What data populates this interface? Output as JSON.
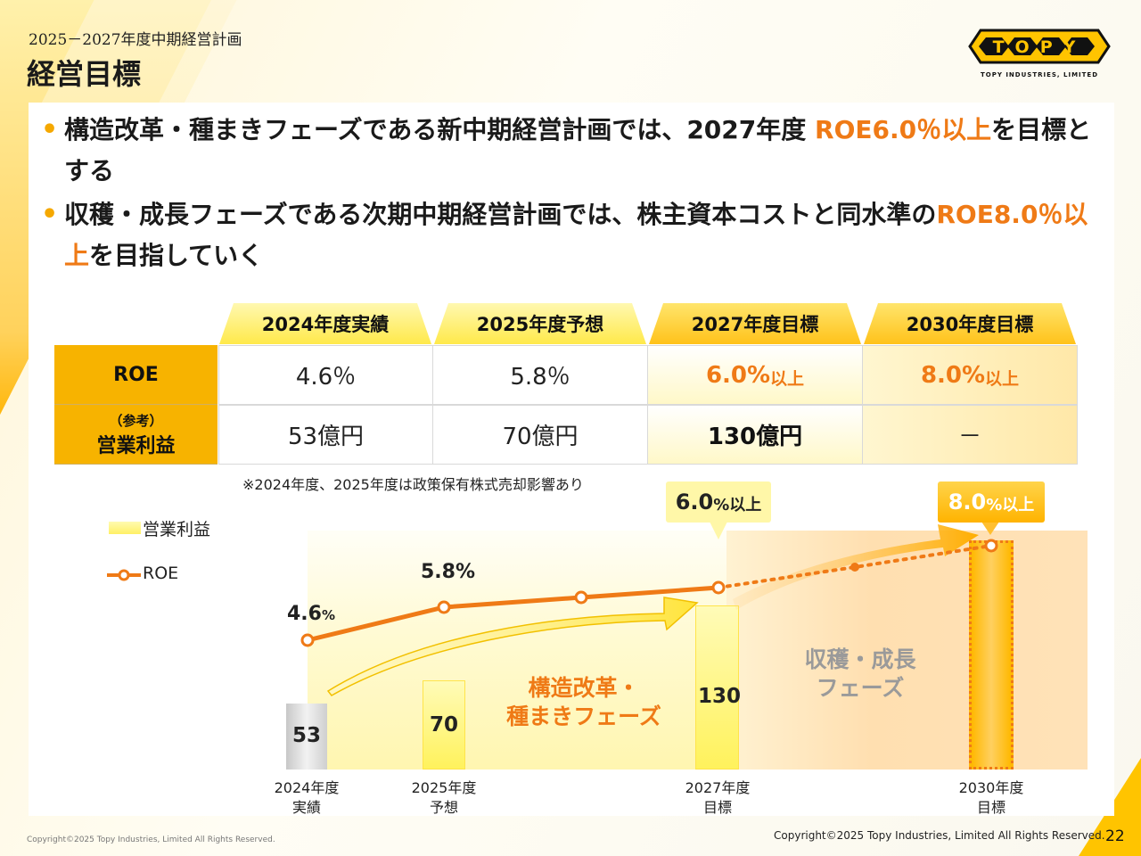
{
  "header": {
    "subtitle": "2025－2027年度中期経営計画",
    "title": "経営目標",
    "logo_text": "TOPY",
    "logo_subtext": "TOPY INDUSTRIES, LIMITED"
  },
  "bullets": [
    {
      "text_a": "構造改革・種まきフェーズである新中期経営計画では、2027年度 ",
      "highlight": "ROE6.0％以上",
      "text_b": "を目標とする"
    },
    {
      "text_a": "収穫・成長フェーズである次期中期経営計画では、株主資本コストと同水準の",
      "highlight": "ROE8.0％以上",
      "text_b": "を目指していく"
    }
  ],
  "table": {
    "columns": [
      "2024年度実績",
      "2025年度予想",
      "2027年度目標",
      "2030年度目標"
    ],
    "rows": [
      {
        "label": "ROE",
        "label_sub": "",
        "cells": [
          "4.6％",
          "5.8％",
          "6.0%",
          "8.0%"
        ],
        "cell_suffix": [
          "",
          "",
          "以上",
          "以上"
        ]
      },
      {
        "label": "営業利益",
        "label_sub": "（参考）",
        "cells": [
          "53億円",
          "70億円",
          "130億円",
          "－"
        ],
        "cell_suffix": [
          "",
          "",
          "",
          ""
        ]
      }
    ],
    "note": "※2024年度、2025年度は政策保有株式売却影響あり"
  },
  "chart_data": {
    "type": "bar",
    "categories": [
      "2024年度\n実績",
      "2025年度\n予想",
      "",
      "2027年度\n目標",
      "",
      "2030年度\n目標"
    ],
    "series": [
      {
        "name": "営業利益",
        "values": [
          53,
          70,
          null,
          130,
          null,
          null
        ]
      },
      {
        "name": "ROE",
        "values": [
          4.6,
          5.8,
          null,
          6.0,
          null,
          8.0
        ]
      }
    ],
    "legend": [
      "営業利益",
      "ROE"
    ],
    "legend_position": "top-left",
    "x_labels": [
      {
        "line1": "2024年度",
        "line2": "実績"
      },
      {
        "line1": "2025年度",
        "line2": "予想"
      },
      {
        "line1": "2027年度",
        "line2": "目標"
      },
      {
        "line1": "2030年度",
        "line2": "目標"
      }
    ],
    "bar_labels": [
      "53",
      "70",
      "130"
    ],
    "roe_labels": [
      {
        "value": "4.6",
        "unit": "%"
      },
      {
        "value": "5.8%",
        "unit": ""
      }
    ],
    "callouts": [
      {
        "value": "6.0",
        "unit": "%以上"
      },
      {
        "value": "8.0",
        "unit": "%以上"
      }
    ],
    "phases": [
      {
        "line1": "構造改革・",
        "line2": "種まきフェーズ"
      },
      {
        "line1": "収穫・成長",
        "line2": "フェーズ"
      }
    ]
  },
  "footer": {
    "copyright_left": "Copyright©2025 Topy Industries, Limited All Rights Reserved.",
    "copyright_right": "Copyright©2025 Topy Industries, Limited All Rights Reserved.",
    "page": "22"
  },
  "colors": {
    "accent_orange": "#ef7a16",
    "brand_yellow": "#f7b300"
  }
}
